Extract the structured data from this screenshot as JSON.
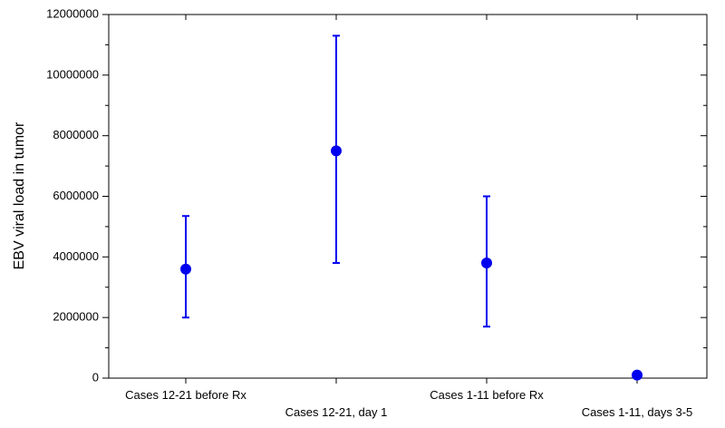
{
  "chart_data": {
    "type": "scatter",
    "title": "",
    "xlabel": "",
    "ylabel": "EBV viral load in tumor",
    "ylim": [
      0,
      12000000
    ],
    "y_ticks": [
      "0",
      "2000000",
      "4000000",
      "6000000",
      "8000000",
      "10000000",
      "12000000"
    ],
    "y_tick_values": [
      0,
      2000000,
      4000000,
      6000000,
      8000000,
      10000000,
      12000000
    ],
    "grid": false,
    "categories": [
      "Cases 12-21 before Rx",
      "Cases 12-21, day 1",
      "Cases 1-11 before Rx",
      "Cases 1-11, days 3-5"
    ],
    "series": [
      {
        "values": [
          3600000,
          7500000,
          3800000,
          100000
        ],
        "error_low": [
          2000000,
          3800000,
          1700000,
          100000
        ],
        "error_high": [
          5350000,
          11300000,
          6000000,
          100000
        ]
      }
    ],
    "colors": {
      "marker": "#0000ee",
      "axis": "#000000"
    }
  }
}
